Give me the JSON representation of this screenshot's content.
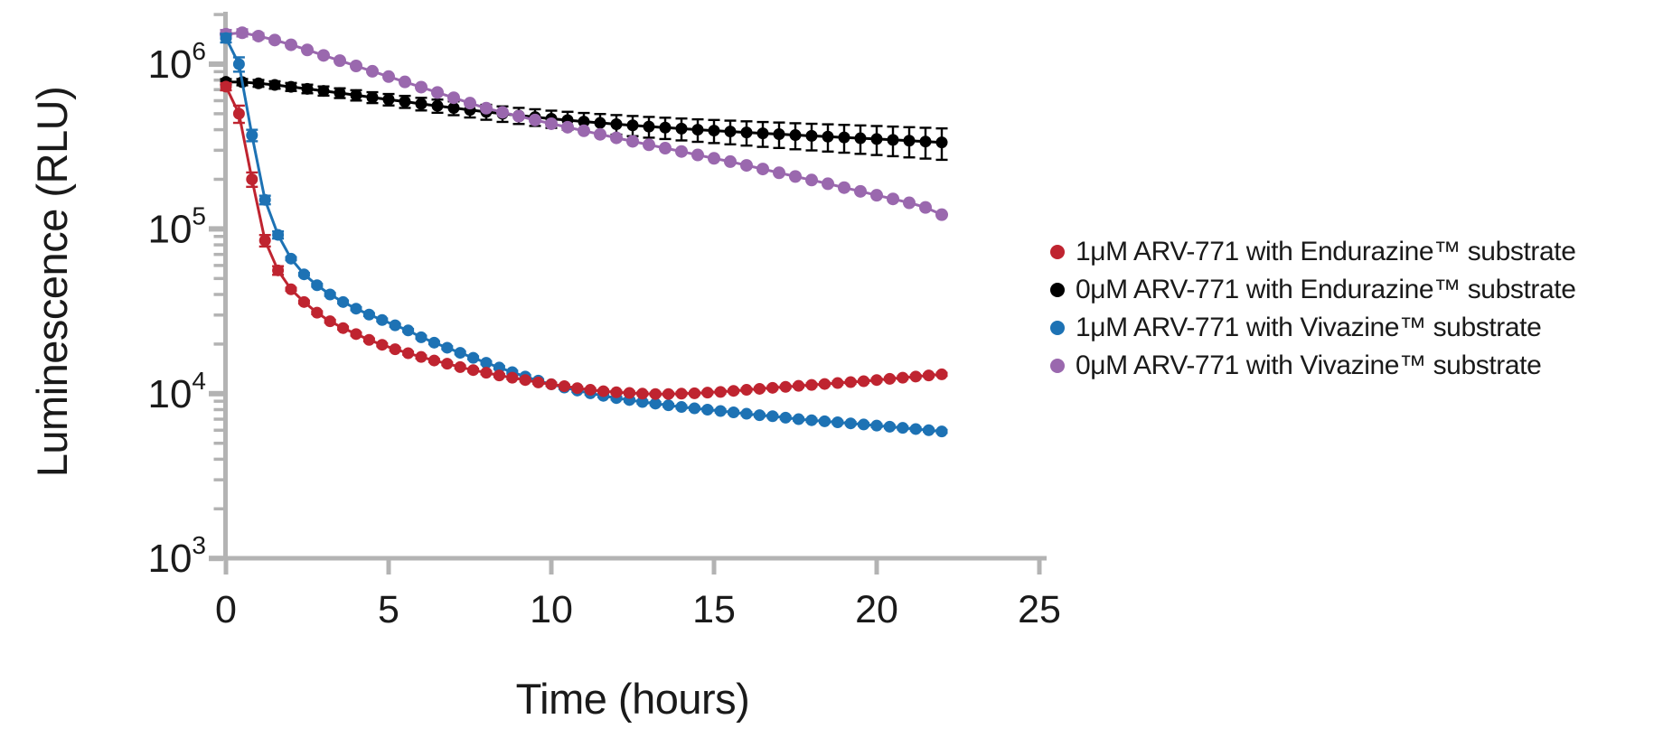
{
  "figure": {
    "background": "#ffffff",
    "axis_color": "#b3b3b3",
    "text_color": "#1a1a1a"
  },
  "chart_data": {
    "type": "line",
    "title": "",
    "xlabel": "Time (hours)",
    "ylabel": "Luminescence (RLU)",
    "grid": false,
    "legend_position": "right",
    "x_axis": {
      "min": 0,
      "max": 25,
      "ticks": [
        0,
        5,
        10,
        15,
        20,
        25
      ]
    },
    "y_axis": {
      "scale": "log",
      "min": 1000,
      "max": 2000000,
      "tick_exponents": [
        3,
        4,
        5,
        6
      ]
    },
    "series": [
      {
        "id": "red-1um-endurazine",
        "name": "1μM ARV-771 with Endurazine™ substrate",
        "color": "#bf2430",
        "marker": "circle",
        "marker_radius": 6.5,
        "t_step_hours": 0.4,
        "values_rlu": [
          730000,
          500000,
          200000,
          85000,
          56000,
          43000,
          36000,
          31000,
          27500,
          25000,
          23000,
          21200,
          19800,
          18600,
          17600,
          16700,
          15900,
          15200,
          14500,
          13900,
          13400,
          12900,
          12500,
          12100,
          11700,
          11400,
          11100,
          10800,
          10550,
          10350,
          10200,
          10100,
          10000,
          9950,
          9950,
          10000,
          10050,
          10150,
          10250,
          10400,
          10550,
          10700,
          10850,
          11000,
          11150,
          11300,
          11450,
          11600,
          11750,
          11900,
          12100,
          12300,
          12500,
          12700,
          12900,
          13100
        ],
        "err_frac": [
          0.05,
          0.12,
          0.1,
          0.08,
          0.06,
          0.02,
          0.02,
          0.02,
          0.02,
          0.02,
          0.02,
          0.02,
          0.02,
          0.02,
          0.02,
          0.02,
          0.02,
          0.02,
          0.02,
          0.02,
          0.02,
          0.02,
          0.02,
          0.02,
          0.02,
          0.02,
          0.02,
          0.02,
          0.02,
          0.02,
          0.02,
          0.02,
          0.02,
          0.02,
          0.02,
          0.02,
          0.02,
          0.02,
          0.02,
          0.02,
          0.02,
          0.02,
          0.02,
          0.02,
          0.02,
          0.02,
          0.02,
          0.02,
          0.02,
          0.02,
          0.02,
          0.02,
          0.02,
          0.02,
          0.02,
          0.02
        ]
      },
      {
        "id": "black-0um-endurazine",
        "name": "0μM ARV-771 with Endurazine™ substrate",
        "color": "#000000",
        "marker": "circle",
        "marker_radius": 6.5,
        "t_step_hours": 0.5,
        "values_rlu": [
          780000,
          778000,
          765000,
          748000,
          728000,
          708000,
          688000,
          668000,
          648000,
          628000,
          610000,
          592000,
          574000,
          558000,
          542000,
          527000,
          513000,
          500000,
          488000,
          477000,
          466000,
          457000,
          448000,
          440000,
          432000,
          425000,
          418000,
          412000,
          406000,
          400000,
          395000,
          390000,
          385000,
          380000,
          376000,
          371000,
          367000,
          363000,
          359000,
          355000,
          351000,
          347000,
          343000,
          339000,
          335000
        ],
        "err_frac": [
          0.04,
          0.044,
          0.048,
          0.052,
          0.056,
          0.06,
          0.064,
          0.068,
          0.072,
          0.076,
          0.08,
          0.084,
          0.088,
          0.092,
          0.096,
          0.1,
          0.104,
          0.108,
          0.112,
          0.116,
          0.12,
          0.124,
          0.128,
          0.132,
          0.136,
          0.14,
          0.144,
          0.148,
          0.152,
          0.156,
          0.16,
          0.164,
          0.168,
          0.172,
          0.176,
          0.18,
          0.184,
          0.188,
          0.192,
          0.196,
          0.2,
          0.204,
          0.208,
          0.212,
          0.216
        ]
      },
      {
        "id": "blue-1um-vivazine",
        "name": "1μM ARV-771 with Vivazine™ substrate",
        "color": "#1d72b4",
        "marker": "circle",
        "marker_radius": 6.5,
        "t_step_hours": 0.4,
        "values_rlu": [
          1440000,
          1000000,
          370000,
          150000,
          92000,
          66000,
          53000,
          45500,
          40000,
          36000,
          32800,
          30200,
          28000,
          26000,
          24200,
          22000,
          20400,
          19000,
          17700,
          16500,
          15400,
          14400,
          13500,
          12700,
          12000,
          11400,
          10900,
          10450,
          10050,
          9700,
          9400,
          9150,
          8900,
          8700,
          8500,
          8300,
          8150,
          8000,
          7850,
          7700,
          7550,
          7400,
          7300,
          7150,
          7000,
          6900,
          6800,
          6700,
          6600,
          6500,
          6400,
          6300,
          6200,
          6100,
          6000,
          5900
        ],
        "err_frac": [
          0.06,
          0.1,
          0.08,
          0.06,
          0.05,
          0.02,
          0.02,
          0.02,
          0.02,
          0.02,
          0.02,
          0.02,
          0.02,
          0.02,
          0.02,
          0.02,
          0.02,
          0.02,
          0.02,
          0.02,
          0.02,
          0.02,
          0.02,
          0.02,
          0.02,
          0.02,
          0.02,
          0.02,
          0.02,
          0.02,
          0.02,
          0.02,
          0.02,
          0.02,
          0.02,
          0.02,
          0.02,
          0.02,
          0.02,
          0.02,
          0.02,
          0.02,
          0.02,
          0.02,
          0.02,
          0.02,
          0.02,
          0.02,
          0.02,
          0.02,
          0.02,
          0.02,
          0.02,
          0.02,
          0.02,
          0.02
        ]
      },
      {
        "id": "purple-0um-vivazine",
        "name": "0μM ARV-771 with Vivazine™ substrate",
        "color": "#9a68ae",
        "marker": "circle",
        "marker_radius": 7,
        "t_step_hours": 0.5,
        "values_rlu": [
          1520000,
          1550000,
          1480000,
          1400000,
          1310000,
          1220000,
          1130000,
          1050000,
          975000,
          905000,
          840000,
          780000,
          725000,
          673000,
          625000,
          580000,
          540000,
          510000,
          483000,
          458000,
          435000,
          414000,
          394000,
          375000,
          357000,
          340000,
          324000,
          309000,
          295000,
          281000,
          268000,
          256000,
          243000,
          231000,
          219000,
          208000,
          198000,
          188000,
          178000,
          169000,
          160000,
          152000,
          144000,
          135000,
          122000
        ],
        "err_frac": [
          0.06,
          0.05,
          0.04,
          0.03,
          0.015,
          0.015,
          0.015,
          0.015,
          0.015,
          0.015,
          0.015,
          0.015,
          0.015,
          0.015,
          0.015,
          0.015,
          0.015,
          0.015,
          0.015,
          0.015,
          0.015,
          0.015,
          0.015,
          0.015,
          0.015,
          0.015,
          0.015,
          0.015,
          0.015,
          0.015,
          0.015,
          0.015,
          0.015,
          0.015,
          0.015,
          0.015,
          0.015,
          0.015,
          0.015,
          0.015,
          0.015,
          0.015,
          0.015,
          0.015,
          0.015
        ]
      }
    ]
  }
}
